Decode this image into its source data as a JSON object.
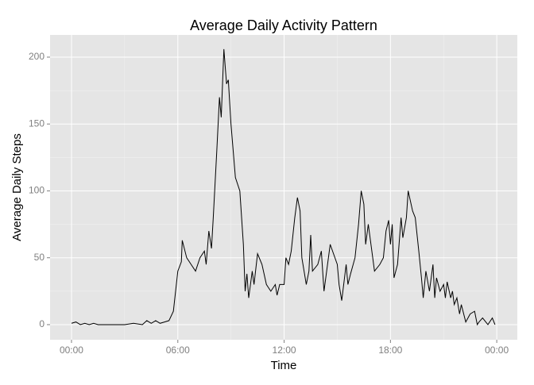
{
  "chart_data": {
    "type": "line",
    "title": "Average Daily Activity Pattern",
    "x_label": "Time",
    "y_label": "Average Daily Steps",
    "color": "#000000",
    "x": [
      0,
      0.25,
      0.5,
      0.75,
      1,
      1.25,
      1.5,
      2,
      2.5,
      3,
      3.5,
      4,
      4.25,
      4.5,
      4.75,
      5,
      5.25,
      5.5,
      5.75,
      6.0,
      6.2,
      6.25,
      6.5,
      6.75,
      7.0,
      7.25,
      7.5,
      7.6,
      7.75,
      7.9,
      8.0,
      8.2,
      8.35,
      8.45,
      8.6,
      8.75,
      8.85,
      9.0,
      9.25,
      9.5,
      9.7,
      9.8,
      9.9,
      10.0,
      10.2,
      10.3,
      10.5,
      10.75,
      11.0,
      11.25,
      11.5,
      11.6,
      11.75,
      12.0,
      12.1,
      12.25,
      12.4,
      12.6,
      12.75,
      12.9,
      13.0,
      13.25,
      13.4,
      13.5,
      13.6,
      13.9,
      14.1,
      14.25,
      14.5,
      14.6,
      15.0,
      15.1,
      15.25,
      15.5,
      15.6,
      15.75,
      16.0,
      16.2,
      16.35,
      16.5,
      16.6,
      16.75,
      17.0,
      17.1,
      17.4,
      17.6,
      17.75,
      17.9,
      18.0,
      18.1,
      18.2,
      18.4,
      18.6,
      18.7,
      18.9,
      19.0,
      19.25,
      19.4,
      19.6,
      19.75,
      19.85,
      20.0,
      20.2,
      20.4,
      20.5,
      20.6,
      20.8,
      21.0,
      21.1,
      21.2,
      21.4,
      21.5,
      21.6,
      21.75,
      21.9,
      22.0,
      22.25,
      22.5,
      22.75,
      22.9,
      23.0,
      23.2,
      23.5,
      23.75,
      23.9
    ],
    "values": [
      1,
      2,
      0,
      1,
      0,
      1,
      0,
      0,
      0,
      0,
      1,
      0,
      3,
      1,
      3,
      1,
      2,
      3,
      10,
      40,
      47,
      63,
      50,
      45,
      40,
      50,
      55,
      45,
      70,
      57,
      80,
      130,
      170,
      155,
      206,
      180,
      183,
      150,
      110,
      100,
      60,
      25,
      38,
      20,
      40,
      30,
      53,
      45,
      30,
      25,
      30,
      22,
      30,
      30,
      50,
      45,
      55,
      80,
      95,
      85,
      50,
      30,
      40,
      67,
      40,
      45,
      55,
      25,
      50,
      60,
      45,
      30,
      18,
      45,
      30,
      38,
      50,
      75,
      100,
      90,
      60,
      75,
      50,
      40,
      45,
      50,
      70,
      78,
      60,
      75,
      35,
      45,
      80,
      65,
      80,
      100,
      85,
      80,
      55,
      35,
      20,
      40,
      25,
      45,
      20,
      35,
      25,
      30,
      20,
      32,
      20,
      25,
      15,
      20,
      8,
      15,
      2,
      8,
      10,
      0,
      2,
      5,
      0,
      5,
      0
    ],
    "xlim": [
      -1.21,
      25.16
    ],
    "ylim": [
      -11.3,
      216.6
    ],
    "xticks": [
      {
        "value": 0,
        "label": "00:00"
      },
      {
        "value": 6,
        "label": "06:00"
      },
      {
        "value": 12,
        "label": "12:00"
      },
      {
        "value": 18,
        "label": "18:00"
      },
      {
        "value": 24,
        "label": "00:00"
      }
    ],
    "yticks": [
      0,
      50,
      100,
      150,
      200
    ],
    "grid": true
  }
}
